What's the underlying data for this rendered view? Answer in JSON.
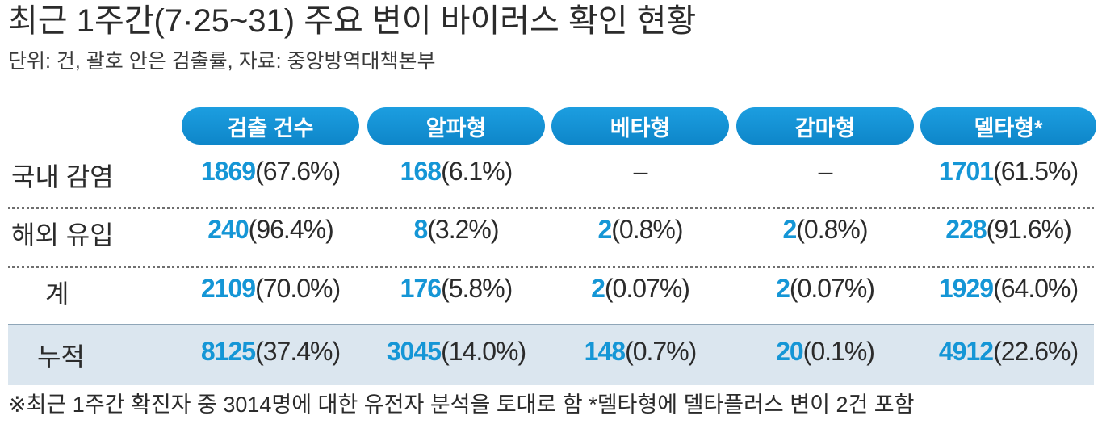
{
  "title": "최근 1주간(7·25~31) 주요 변이 바이러스 확인 현황",
  "subtitle": "단위: 건, 괄호 안은 검출률, 자료: 중앙방역대책본부",
  "footnote": "※최근 1주간 확진자 중 3014명에 대한 유전자 분석을 토대로 함  *델타형에 델타플러스 변이 2건 포함",
  "colors": {
    "accent": "#1596d6",
    "header_pill": "#1499dc",
    "cumulative_row_bg": "#dbe6ef"
  },
  "chart_data": {
    "type": "table",
    "columns": [
      "검출 건수",
      "알파형",
      "베타형",
      "감마형",
      "델타형*"
    ],
    "rows": [
      {
        "label": "국내 감염",
        "cells": [
          {
            "count": "1869",
            "pct": "(67.6%)"
          },
          {
            "count": "168",
            "pct": "(6.1%)"
          },
          {
            "count": "–",
            "pct": ""
          },
          {
            "count": "–",
            "pct": ""
          },
          {
            "count": "1701",
            "pct": "(61.5%)"
          }
        ]
      },
      {
        "label": "해외 유입",
        "cells": [
          {
            "count": "240",
            "pct": "(96.4%)"
          },
          {
            "count": "8",
            "pct": "(3.2%)"
          },
          {
            "count": "2",
            "pct": "(0.8%)"
          },
          {
            "count": "2",
            "pct": "(0.8%)"
          },
          {
            "count": "228",
            "pct": "(91.6%)"
          }
        ]
      },
      {
        "label": "계",
        "cells": [
          {
            "count": "2109",
            "pct": "(70.0%)"
          },
          {
            "count": "176",
            "pct": "(5.8%)"
          },
          {
            "count": "2",
            "pct": "(0.07%)"
          },
          {
            "count": "2",
            "pct": "(0.07%)"
          },
          {
            "count": "1929",
            "pct": "(64.0%)"
          }
        ]
      },
      {
        "label": "누적",
        "cells": [
          {
            "count": "8125",
            "pct": "(37.4%)"
          },
          {
            "count": "3045",
            "pct": "(14.0%)"
          },
          {
            "count": "148",
            "pct": "(0.7%)"
          },
          {
            "count": "20",
            "pct": "(0.1%)"
          },
          {
            "count": "4912",
            "pct": "(22.6%)"
          }
        ]
      }
    ]
  }
}
